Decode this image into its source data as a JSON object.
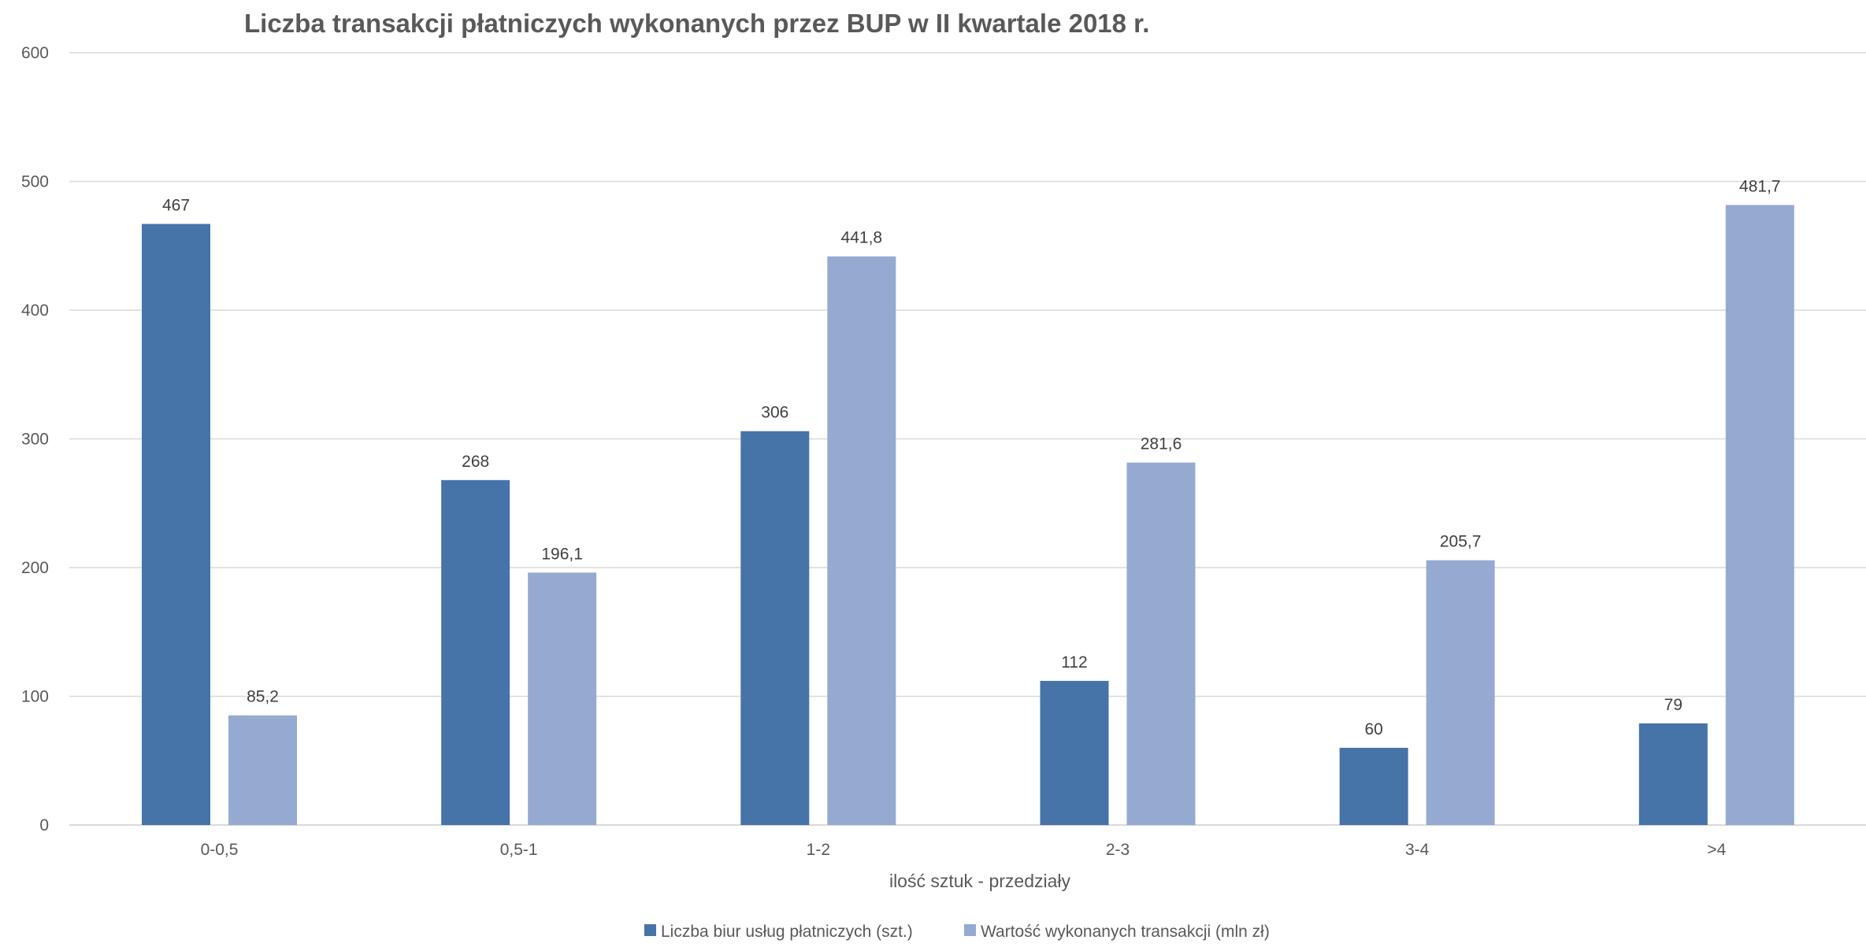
{
  "chart_data": {
    "type": "bar",
    "title": "Liczba transakcji płatniczych wykonanych przez BUP w II kwartale 2018 r.",
    "xlabel": "ilość sztuk - przedziały",
    "ylabel": "",
    "ylim": [
      0,
      600
    ],
    "yticks": [
      "0",
      "100",
      "200",
      "300",
      "400",
      "500",
      "600"
    ],
    "grid": true,
    "legend_position": "bottom",
    "categories": [
      "0-0,5",
      "0,5-1",
      "1-2",
      "2-3",
      "3-4",
      ">4"
    ],
    "series": [
      {
        "name": "Liczba biur usług płatniczych (szt.)",
        "color": "#4673a8",
        "values": [
          467,
          268,
          306,
          112,
          60,
          79
        ],
        "labels": [
          "467",
          "268",
          "306",
          "112",
          "60",
          "79"
        ]
      },
      {
        "name": "Wartość wykonanych transakcji (mln zł)",
        "color": "#95aad1",
        "values": [
          85.2,
          196.1,
          441.8,
          281.6,
          205.7,
          481.7
        ],
        "labels": [
          "85,2",
          "196,1",
          "441,8",
          "281,6",
          "205,7",
          "481,7"
        ]
      }
    ]
  }
}
